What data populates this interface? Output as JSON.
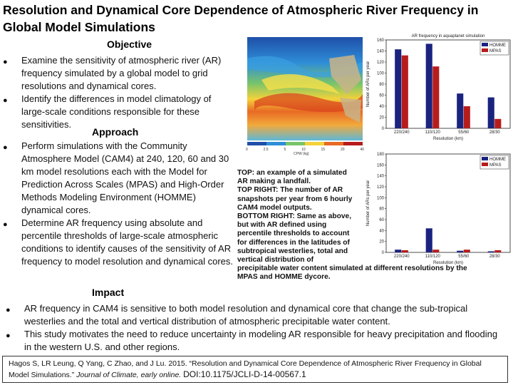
{
  "title": "Resolution and Dynamical Core Dependence of Atmospheric River Frequency in Global Model Simulations",
  "sections": {
    "objective": {
      "heading": "Objective",
      "bullets": [
        "Examine the sensitivity of atmospheric river (AR) frequency simulated by a global model to grid resolutions and dynamical cores.",
        "Identify the differences in model climatology of large-scale conditions responsible for these sensitivities."
      ]
    },
    "approach": {
      "heading": "Approach",
      "bullets": [
        "Perform simulations with the Community Atmosphere Model (CAM4) at 240, 120, 60 and 30 km model resolutions each with the Model for Prediction Across Scales (MPAS) and High-Order Methods Modeling Environment (HOMME) dynamical cores.",
        "Determine AR frequency using absolute and percentile thresholds of large-scale atmospheric conditions to identify causes of the sensitivity of AR frequency to model resolution and dynamical cores."
      ]
    },
    "impact": {
      "heading": "Impact",
      "bullets": [
        "AR frequency in CAM4 is sensitive to both model resolution and dynamical core that change the sub-tropical westerlies and the total and vertical distribution of atmospheric precipitable water content.",
        "This study motivates the need to reduce uncertainty in modeling AR responsible for heavy precipitation and flooding in the western U.S. and other regions."
      ]
    }
  },
  "caption_lines": [
    "TOP: an example of a simulated",
    "AR making a landfall.",
    "TOP RIGHT: The number of AR",
    "snapshots per year from 6 hourly",
    "CAM4 model outputs.",
    "BOTTOM RIGHT: Same as above,",
    "but with AR defined using",
    "percentile thresholds to account",
    "for differences in the latitudes of",
    "subtropical westerlies, total and",
    "vertical distribution of",
    "precipitable water content simulated at different resolutions by the",
    "MPAS and HOMME dycore."
  ],
  "citation": {
    "text": "Hagos S, LR Leung, Q Yang, C Zhao, and J Lu. 2015. “Resolution and Dynamical Core Dependence of Atmospheric River Frequency in Global Model Simulations.”",
    "journal": "Journal of Climate, early online.",
    "doi": "DOI:10.1175/JCLI-D-14-00567.1"
  },
  "map": {
    "colorbar_ticks": [
      "0",
      "2.5",
      "5",
      "10",
      "15",
      "20",
      "40"
    ],
    "colorbar_label": "CPW (kg)"
  },
  "colors": {
    "homme": "#1a237e",
    "mpas": "#b71c1c"
  },
  "chart_data": [
    {
      "type": "bar",
      "title": "AR frequency in aquaplanet simulation",
      "categories": [
        "220/240",
        "110/120",
        "55/60",
        "28/30"
      ],
      "series": [
        {
          "name": "HOMME",
          "values": [
            143,
            153,
            63,
            56
          ]
        },
        {
          "name": "MPAS",
          "values": [
            132,
            112,
            40,
            17
          ]
        }
      ],
      "xlabel": "Resolution (km)",
      "ylabel": "Number of ARs per year",
      "ylim": [
        0,
        160
      ],
      "yticks": [
        0,
        20,
        40,
        60,
        80,
        100,
        120,
        140,
        160
      ],
      "legend": "top-right"
    },
    {
      "type": "bar",
      "title": "",
      "categories": [
        "220/240",
        "110/120",
        "55/60",
        "28/30"
      ],
      "series": [
        {
          "name": "HOMME",
          "values": [
            5,
            44,
            3,
            2
          ]
        },
        {
          "name": "MPAS",
          "values": [
            4,
            5,
            5,
            4
          ]
        }
      ],
      "xlabel": "Resolution (km)",
      "ylabel": "Number of ARs per year",
      "ylim": [
        0,
        180
      ],
      "yticks": [
        0,
        20,
        40,
        60,
        80,
        100,
        120,
        140,
        160,
        180
      ],
      "legend": "top-right"
    }
  ]
}
